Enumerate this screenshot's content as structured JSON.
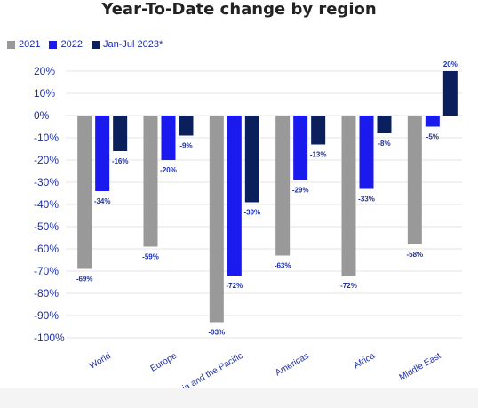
{
  "chart_data": {
    "type": "bar",
    "title": "Year-To-Date change by region",
    "categories": [
      "World",
      "Europe",
      "Asia and the Pacific",
      "Americas",
      "Africa",
      "Middle East"
    ],
    "series": [
      {
        "name": "2021",
        "color": "#999999",
        "values": [
          -69,
          -59,
          -93,
          -63,
          -72,
          -58
        ]
      },
      {
        "name": "2022",
        "color": "#1a1aee",
        "values": [
          -34,
          -20,
          -72,
          -29,
          -33,
          -5
        ]
      },
      {
        "name": "Jan-Jul 2023*",
        "color": "#0a1f5c",
        "values": [
          -16,
          -9,
          -39,
          -13,
          -8,
          20
        ]
      }
    ],
    "data_labels": [
      [
        "-69%",
        "-59%",
        "-93%",
        "-63%",
        "-72%",
        "-58%"
      ],
      [
        "-34%",
        "-20%",
        "-72%",
        "-29%",
        "-33%",
        "-5%"
      ],
      [
        "-16%",
        "-9%",
        "-39%",
        "-13%",
        "-8%",
        "20%"
      ]
    ],
    "y_ticks": [
      20,
      10,
      0,
      -10,
      -20,
      -30,
      -40,
      -50,
      -60,
      -70,
      -80,
      -90,
      -100
    ],
    "y_tick_labels": [
      "20%",
      "10%",
      "0%",
      "-10%",
      "-20%",
      "-30%",
      "-40%",
      "-50%",
      "-60%",
      "-70%",
      "-80%",
      "-90%",
      "-100%"
    ],
    "ylim": [
      -100,
      20
    ],
    "xlabel": "",
    "ylabel": "",
    "grid": true,
    "legend_position": "top-left",
    "tick_label_color": "#1c2fa8",
    "data_label_color": "#1c2fa8",
    "gridline_color": "#e6e6e6",
    "title_color": "#222222"
  }
}
